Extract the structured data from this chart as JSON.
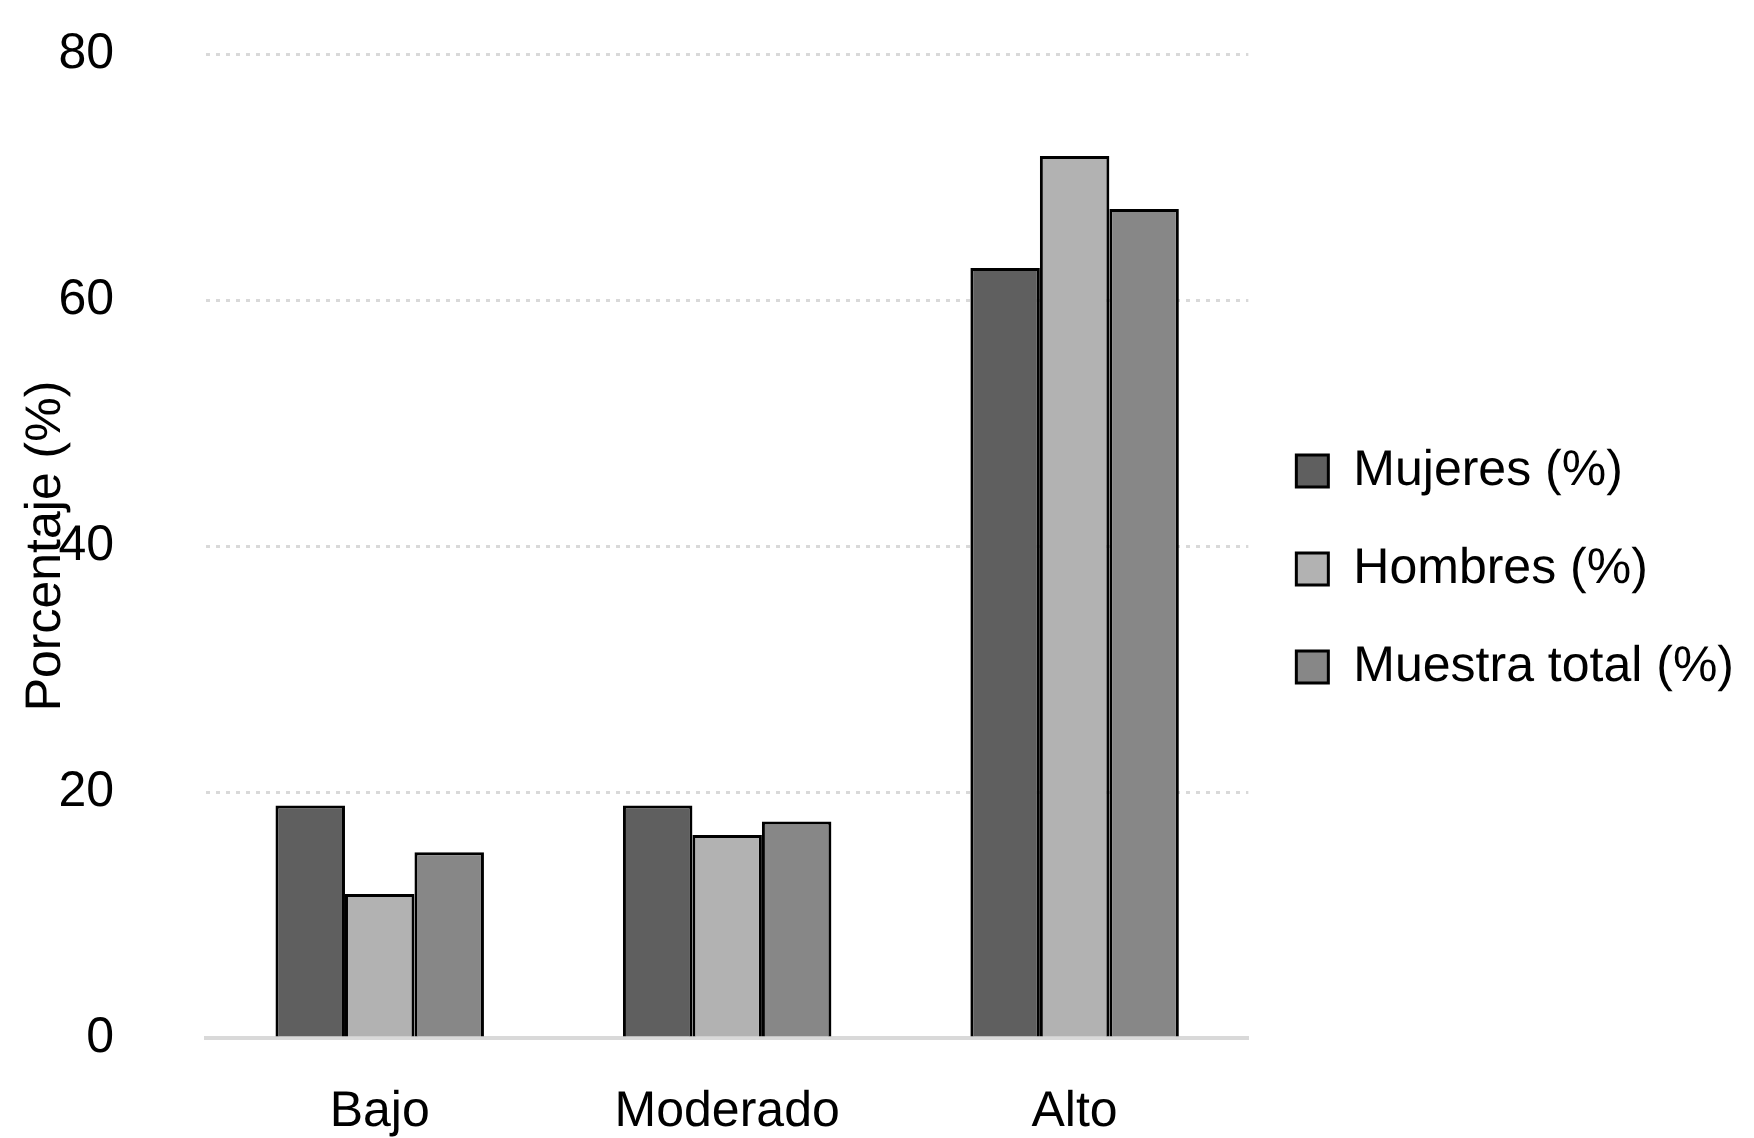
{
  "chart_data": {
    "type": "bar",
    "ylabel": "Porcentaje (%)",
    "categories": [
      "Bajo",
      "Moderado",
      "Alto"
    ],
    "series": [
      {
        "name": "Mujeres (%)",
        "color": "#5f5f5f",
        "values": [
          18.9,
          18.9,
          62.6
        ]
      },
      {
        "name": "Hombres (%)",
        "color": "#b2b2b2",
        "values": [
          11.7,
          16.5,
          71.7
        ]
      },
      {
        "name": "Muestra total (%)",
        "color": "#878787",
        "values": [
          15.1,
          17.6,
          67.4
        ]
      }
    ],
    "ylim": [
      0,
      80
    ],
    "yticks": [
      0,
      20,
      40,
      60,
      80
    ],
    "grid": "y",
    "legend": "right"
  }
}
